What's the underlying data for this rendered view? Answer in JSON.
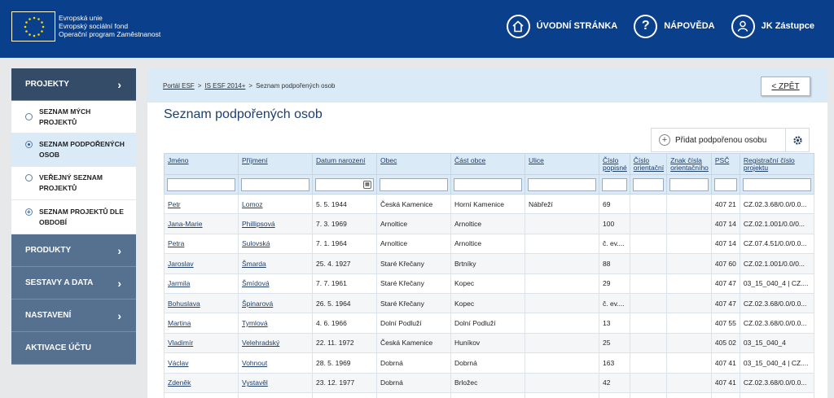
{
  "header": {
    "logo_lines": [
      "Evropská unie",
      "Evropský sociální fond",
      "Operační program Zaměstnanost"
    ],
    "nav": [
      {
        "label": "ÚVODNÍ STRÁNKA",
        "icon": "home-icon"
      },
      {
        "label": "NÁPOVĚDA",
        "icon": "help-icon"
      },
      {
        "label": "JK Zástupce",
        "icon": "user-icon"
      }
    ]
  },
  "sidebar": {
    "projekty": "PROJEKTY",
    "sub": [
      "SEZNAM MÝCH PROJEKTŮ",
      "SEZNAM PODPOŘENÝCH OSOB",
      "VEŘEJNÝ SEZNAM PROJEKTŮ",
      "SEZNAM PROJEKTŮ DLE OBDOBÍ"
    ],
    "produkty": "PRODUKTY",
    "sestavy": "SESTAVY A DATA",
    "nastaveni": "NASTAVENÍ",
    "aktivace": "AKTIVACE ÚČTU"
  },
  "breadcrumb": {
    "a": "Portál ESF",
    "b": "IS ESF 2014+",
    "c": "Seznam podpořených osob"
  },
  "back_label": "< ZPĚT",
  "page_title": "Seznam podpořených osob",
  "add_label": "Přidat podpořenou osobu",
  "table": {
    "headers": [
      "Jméno",
      "Příjmení",
      "Datum narození",
      "Obec",
      "Část obce",
      "Ulice",
      "Číslo popisné",
      "Číslo orientační",
      "Znak čísla orientačního",
      "PSČ",
      "Registrační číslo projektu"
    ],
    "rows": [
      [
        "Petr",
        "Lomoz",
        "5. 5. 1944",
        "Česká Kamenice",
        "Horní Kamenice",
        "Nábřeží",
        "69",
        "",
        "",
        "407 21",
        "CZ.02.3.68/0.0/0.0..."
      ],
      [
        "Jana-Marie",
        "Phillipsová",
        "7. 3. 1969",
        "Arnoltice",
        "Arnoltice",
        "",
        "100",
        "",
        "",
        "407 14",
        "CZ.02.1.001/0.0/0..."
      ],
      [
        "Petra",
        "Sulovská",
        "7. 1. 1964",
        "Arnoltice",
        "Arnoltice",
        "",
        "č. ev....",
        "",
        "",
        "407 14",
        "CZ.07.4.51/0.0/0.0..."
      ],
      [
        "Jaroslav",
        "Šmarda",
        "25. 4. 1927",
        "Staré Křečany",
        "Brtníky",
        "",
        "88",
        "",
        "",
        "407 60",
        "CZ.02.1.001/0.0/0..."
      ],
      [
        "Jarmila",
        "Šmídová",
        "7. 7. 1961",
        "Staré Křečany",
        "Kopec",
        "",
        "29",
        "",
        "",
        "407 47",
        "03_15_040_4 | CZ...."
      ],
      [
        "Bohuslava",
        "Špinarová",
        "26. 5. 1964",
        "Staré Křečany",
        "Kopec",
        "",
        "č. ev....",
        "",
        "",
        "407 47",
        "CZ.02.3.68/0.0/0.0..."
      ],
      [
        "Martina",
        "Tymlová",
        "4. 6. 1966",
        "Dolní Podluží",
        "Dolní Podluží",
        "",
        "13",
        "",
        "",
        "407 55",
        "CZ.02.3.68/0.0/0.0..."
      ],
      [
        "Vladimír",
        "Velehradský",
        "22. 11. 1972",
        "Česká Kamenice",
        "Huníkov",
        "",
        "25",
        "",
        "",
        "405 02",
        "03_15_040_4"
      ],
      [
        "Václav",
        "Vohnout",
        "28. 5. 1969",
        "Dobrná",
        "Dobrná",
        "",
        "163",
        "",
        "",
        "407 41",
        "03_15_040_4 | CZ...."
      ],
      [
        "Zdeněk",
        "Vystavěl",
        "23. 12. 1977",
        "Dobrná",
        "Brložec",
        "",
        "42",
        "",
        "",
        "407 41",
        "CZ.02.3.68/0.0/0.0..."
      ],
      [
        "",
        "",
        "",
        "",
        "",
        "",
        "",
        "",
        "",
        "",
        ""
      ]
    ]
  }
}
